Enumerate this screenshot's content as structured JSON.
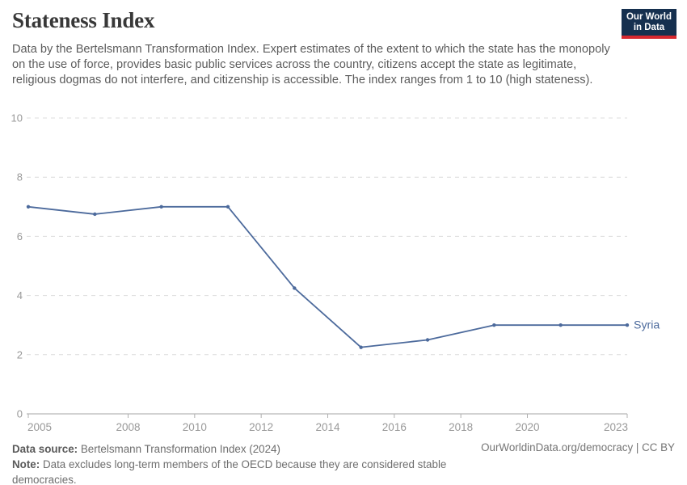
{
  "header": {
    "title": "Stateness Index",
    "subtitle": "Data by the Bertelsmann Transformation Index. Expert estimates of the extent to which the state has the monopoly on the use of force, provides basic public services across the country, citizens accept the state as legitimate, religious dogmas do not interfere, and citizenship is accessible. The index ranges from 1 to 10 (high stateness)."
  },
  "logo": {
    "line1": "Our World",
    "line2": "in Data",
    "bg_color": "#16304f",
    "bar_color": "#d7282f"
  },
  "chart_data": {
    "type": "line",
    "title": "Stateness Index",
    "x": [
      2005,
      2007,
      2009,
      2011,
      2013,
      2015,
      2017,
      2019,
      2021,
      2023
    ],
    "series": [
      {
        "name": "Syria",
        "values": [
          7,
          6.75,
          7,
          7,
          4.25,
          2.25,
          2.5,
          3,
          3,
          3
        ],
        "color": "#4C6A9C"
      }
    ],
    "xlim": [
      2005,
      2023
    ],
    "ylim": [
      0,
      10
    ],
    "yticks": [
      0,
      2,
      4,
      6,
      8,
      10
    ],
    "xticks": [
      2005,
      2008,
      2010,
      2012,
      2014,
      2016,
      2018,
      2020,
      2023
    ],
    "grid": "horizontal-dashed",
    "legend": "end-of-line-label"
  },
  "footer": {
    "source_label": "Data source:",
    "source_text": "Bertelsmann Transformation Index (2024)",
    "note_label": "Note:",
    "note_text": "Data excludes long-term members of the OECD because they are considered stable democracies.",
    "credit": "OurWorldinData.org/democracy | CC BY"
  }
}
